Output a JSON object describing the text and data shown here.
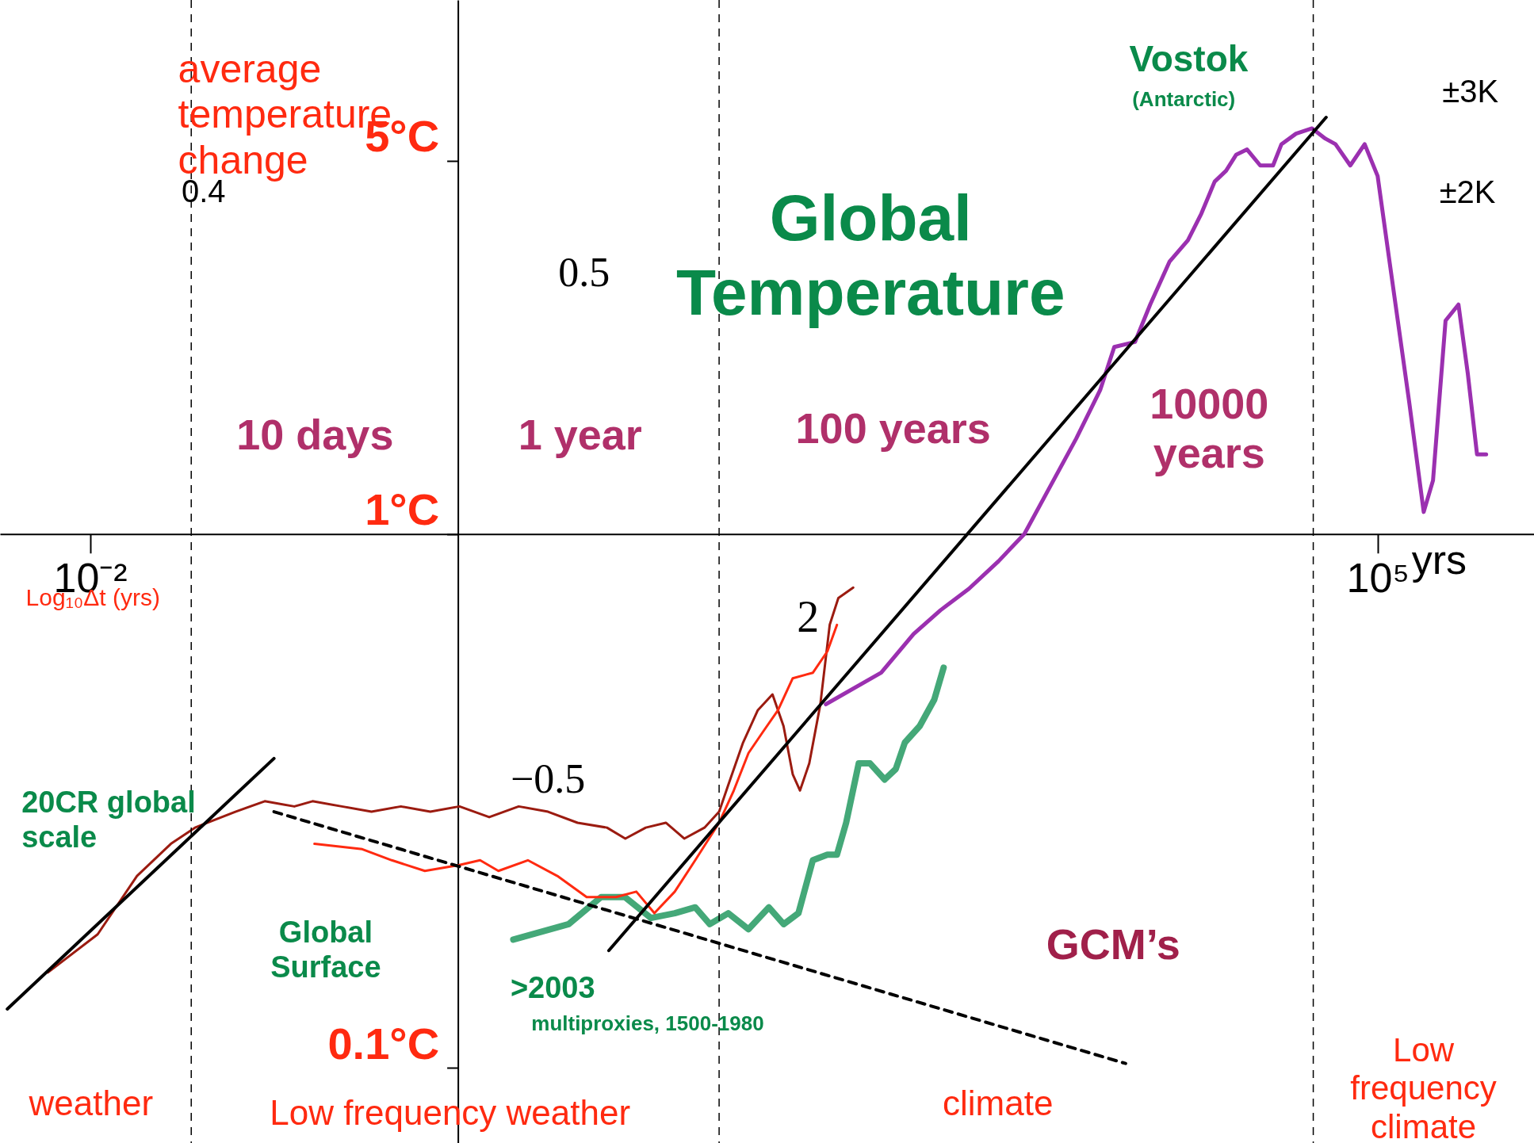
{
  "chart_data": {
    "type": "line",
    "xlabel": "Log₁₀Δt (yrs)",
    "ylabel": "average temperature change",
    "log": "xy",
    "xlim": [
      0.00324,
      708000
    ],
    "ylim": [
      0.0724,
      10
    ],
    "xticks": [
      {
        "value": 0.01,
        "label": "10⁻²"
      },
      {
        "value": 100000,
        "label": "10⁵"
      }
    ],
    "yticks": [
      {
        "value": 0.1,
        "label": "0.1°C"
      },
      {
        "value": 1,
        "label": "1°C"
      },
      {
        "value": 5,
        "label": "5°C"
      }
    ],
    "grid": false,
    "series": [
      {
        "color": "#9b30b0",
        "x": [
          100,
          200,
          300,
          420,
          600,
          870,
          1200,
          1600,
          2300,
          3100,
          3700,
          4800,
          5800,
          7400,
          9300,
          11000,
          13000,
          15000,
          17000,
          19500,
          23000,
          27000,
          30000,
          36000,
          44000,
          52000,
          59000,
          71000,
          85000,
          100000,
          115000,
          148000,
          178000,
          200000,
          234000,
          275000,
          309000,
          347000,
          389000
        ],
        "values": [
          0.48,
          0.55,
          0.65,
          0.72,
          0.79,
          0.89,
          1.0,
          1.2,
          1.51,
          1.86,
          2.24,
          2.29,
          2.69,
          3.24,
          3.55,
          3.98,
          4.57,
          4.79,
          5.13,
          5.25,
          4.9,
          4.9,
          5.37,
          5.62,
          5.75,
          5.5,
          5.37,
          4.9,
          5.37,
          4.68,
          3.31,
          1.78,
          1.1,
          1.26,
          2.51,
          2.69,
          2.0,
          1.41,
          1.41
        ]
      },
      {
        "color": "#44a878",
        "x": [
          2.0,
          4.0,
          6.0,
          8.1,
          11.2,
          15.1,
          19.5,
          23.4,
          29.5,
          38,
          49,
          59,
          71,
          85,
          102,
          115,
          129,
          151,
          174,
          209,
          240,
          269,
          324,
          389,
          437
        ],
        "values": [
          0.174,
          0.186,
          0.209,
          0.209,
          0.191,
          0.195,
          0.2,
          0.186,
          0.195,
          0.182,
          0.2,
          0.186,
          0.195,
          0.245,
          0.251,
          0.251,
          0.288,
          0.372,
          0.372,
          0.347,
          0.363,
          0.407,
          0.437,
          0.49,
          0.562
        ]
      },
      {
        "color": "#9b1b10",
        "x": [
          0.0059,
          0.011,
          0.018,
          0.0275,
          0.0372,
          0.0617,
          0.0891,
          0.129,
          0.162,
          0.234,
          0.339,
          0.49,
          0.708,
          1.02,
          1.48,
          2.14,
          3.09,
          4.47,
          6.46,
          8.13,
          10.5,
          13.5,
          17.0,
          21.9,
          26.3,
          29.5,
          35.5,
          42.7,
          51.3,
          58.9,
          66.1,
          72.4,
          81.3,
          93.3,
          105,
          117,
          141
        ],
        "values": [
          0.151,
          0.178,
          0.229,
          0.263,
          0.282,
          0.302,
          0.316,
          0.309,
          0.316,
          0.309,
          0.302,
          0.309,
          0.302,
          0.309,
          0.295,
          0.309,
          0.302,
          0.288,
          0.282,
          0.269,
          0.282,
          0.288,
          0.269,
          0.282,
          0.302,
          0.339,
          0.407,
          0.468,
          0.501,
          0.437,
          0.355,
          0.331,
          0.372,
          0.479,
          0.676,
          0.759,
          0.794
        ]
      },
      {
        "color": "#ff2a10",
        "x": [
          0.166,
          0.302,
          0.437,
          0.661,
          1.02,
          1.32,
          1.66,
          2.4,
          3.47,
          5.01,
          7.24,
          9.33,
          11.7,
          15.1,
          19.5,
          26.3,
          31.6,
          38.0,
          45.7,
          55.0,
          66.1,
          85.1,
          102,
          115
        ],
        "values": [
          0.263,
          0.257,
          0.245,
          0.234,
          0.24,
          0.245,
          0.234,
          0.245,
          0.229,
          0.209,
          0.209,
          0.214,
          0.195,
          0.214,
          0.245,
          0.288,
          0.331,
          0.389,
          0.427,
          0.468,
          0.537,
          0.55,
          0.603,
          0.676
        ]
      },
      {
        "color": "#000000",
        "x": [
          0.00355,
          0.1
        ],
        "values": [
          0.129,
          0.38
        ]
      },
      {
        "color": "#000000",
        "x": [
          6.61,
          52480
        ],
        "values": [
          0.166,
          6.03
        ]
      },
      {
        "color": "#000000",
        "line_style": "dashed",
        "x": [
          0.1,
          4266
        ],
        "values": [
          0.302,
          0.102
        ]
      }
    ],
    "ref_lines": [
      {
        "axis": "x",
        "value": 0.0355,
        "color": "#000000",
        "line_style": "dashed"
      },
      {
        "axis": "x",
        "value": 26.3,
        "color": "#000000",
        "line_style": "dashed"
      },
      {
        "axis": "x",
        "value": 44670,
        "color": "#000000",
        "line_style": "dashed"
      }
    ],
    "annotations": [
      "0.4",
      "Global Temperature",
      "Vostok",
      "(Antarctic)",
      "±3K",
      "±2K",
      "10 days",
      "1 year",
      "100 years",
      "10000 years",
      "20CR global scale",
      "Global Surface",
      ">2003",
      "multiproxies, 1500-1980",
      "GCM’s",
      "2",
      "weather",
      "Low frequency weather",
      "climate",
      "Low frequency climate",
      "0.5",
      "−0.5",
      "yrs"
    ]
  }
}
